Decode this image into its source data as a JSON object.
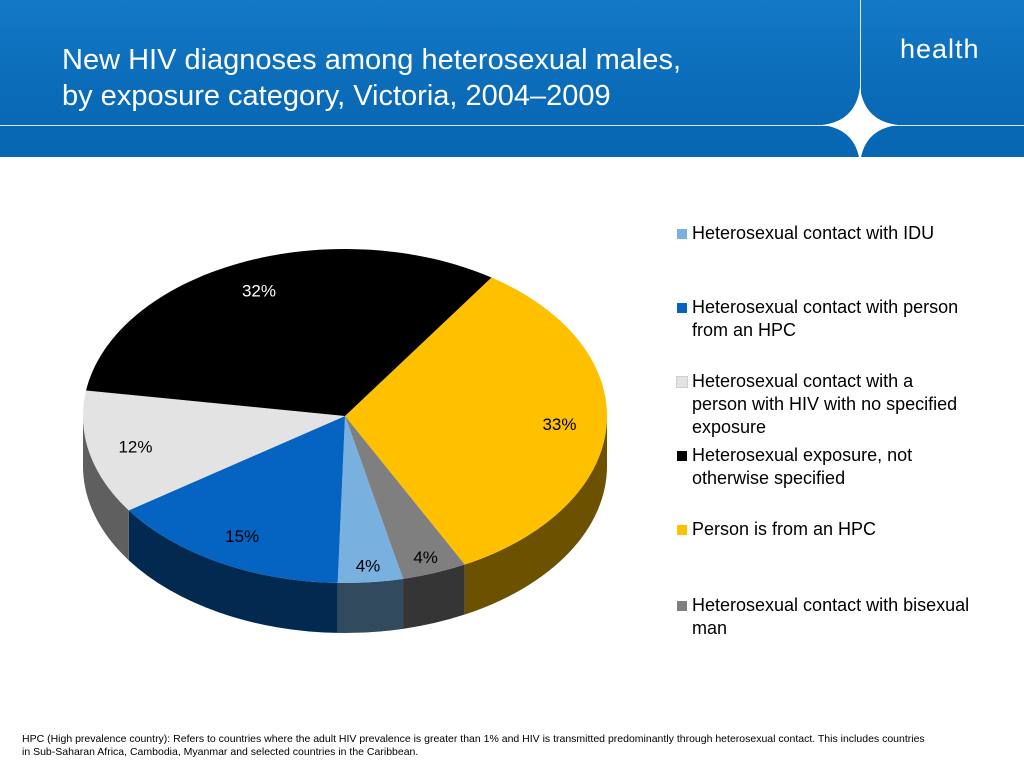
{
  "header": {
    "title_line1": "New HIV diagnoses among heterosexual males,",
    "title_line2": "by exposure category, Victoria, 2004–2009",
    "brand": "health",
    "colors": {
      "background": "#0b6cb8",
      "text": "#ffffff"
    },
    "icons": [
      "four-point-star-icon"
    ]
  },
  "chart_data": {
    "type": "pie",
    "title": "",
    "style": "3d",
    "legend_position": "right",
    "slices": [
      {
        "label": "Person is from an HPC",
        "value": 33,
        "display": "33%",
        "color": "#ffc000"
      },
      {
        "label": "Heterosexual contact with bisexual man",
        "value": 4,
        "display": "4%",
        "color": "#7f7f7f"
      },
      {
        "label": "Heterosexual contact with IDU",
        "value": 4,
        "display": "4%",
        "color": "#78b0e0"
      },
      {
        "label": "Heterosexual contact with person from an HPC",
        "value": 15,
        "display": "15%",
        "color": "#0563c1"
      },
      {
        "label": "Heterosexual contact with a person with HIV with no specified exposure",
        "value": 12,
        "display": "12%",
        "color": "#e3e3e3"
      },
      {
        "label": "Heterosexual exposure, not otherwise specified",
        "value": 32,
        "display": "32%",
        "color": "#000000"
      }
    ]
  },
  "legend": [
    {
      "lines": [
        "Heterosexual contact with IDU"
      ],
      "color": "#78b0e0"
    },
    {
      "lines": [
        "Heterosexual contact with person",
        "from an HPC"
      ],
      "color": "#0563c1"
    },
    {
      "lines": [
        "Heterosexual contact with a",
        "person with HIV with no specified",
        "exposure"
      ],
      "color": "#e3e3e3"
    },
    {
      "lines": [
        "Heterosexual exposure, not",
        "otherwise specified"
      ],
      "color": "#000000"
    },
    {
      "lines": [
        "Person is from an HPC"
      ],
      "color": "#ffc000"
    },
    {
      "lines": [
        "Heterosexual contact with bisexual",
        "man"
      ],
      "color": "#7f7f7f"
    }
  ],
  "footnote": {
    "line1": "HPC (High prevalence country): Refers to countries where the adult HIV prevalence is greater than 1% and HIV is transmitted predominantly through heterosexual contact. This includes countries",
    "line2": "in Sub-Saharan Africa, Cambodia, Myanmar and selected countries in the Caribbean."
  }
}
